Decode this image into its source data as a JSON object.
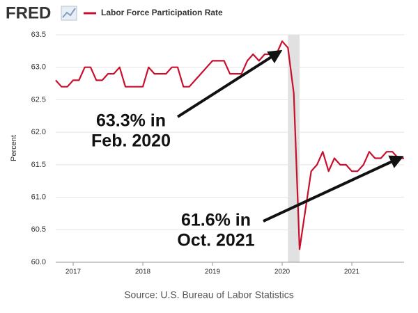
{
  "chart_data": {
    "type": "line",
    "brand": "FRED",
    "source": "Source: U.S. Bureau of Labor Statistics",
    "ylabel": "Percent",
    "x": [
      "2016-10",
      "2016-11",
      "2016-12",
      "2017-01",
      "2017-02",
      "2017-03",
      "2017-04",
      "2017-05",
      "2017-06",
      "2017-07",
      "2017-08",
      "2017-09",
      "2017-10",
      "2017-11",
      "2017-12",
      "2018-01",
      "2018-02",
      "2018-03",
      "2018-04",
      "2018-05",
      "2018-06",
      "2018-07",
      "2018-08",
      "2018-09",
      "2018-10",
      "2018-11",
      "2018-12",
      "2019-01",
      "2019-02",
      "2019-03",
      "2019-04",
      "2019-05",
      "2019-06",
      "2019-07",
      "2019-08",
      "2019-09",
      "2019-10",
      "2019-11",
      "2019-12",
      "2020-01",
      "2020-02",
      "2020-03",
      "2020-04",
      "2020-05",
      "2020-06",
      "2020-07",
      "2020-08",
      "2020-09",
      "2020-10",
      "2020-11",
      "2020-12",
      "2021-01",
      "2021-02",
      "2021-03",
      "2021-04",
      "2021-05",
      "2021-06",
      "2021-07",
      "2021-08",
      "2021-09",
      "2021-10"
    ],
    "series": [
      {
        "name": "Labor Force Participation Rate",
        "color": "#c8102e",
        "values": [
          62.8,
          62.7,
          62.7,
          62.8,
          62.8,
          63.0,
          63.0,
          62.8,
          62.8,
          62.9,
          62.9,
          63.0,
          62.7,
          62.7,
          62.7,
          62.7,
          63.0,
          62.9,
          62.9,
          62.9,
          63.0,
          63.0,
          62.7,
          62.7,
          62.8,
          62.9,
          63.0,
          63.1,
          63.1,
          63.1,
          62.9,
          62.9,
          62.9,
          63.1,
          63.2,
          63.1,
          63.2,
          63.2,
          63.2,
          63.4,
          63.3,
          62.6,
          60.2,
          60.8,
          61.4,
          61.5,
          61.7,
          61.4,
          61.6,
          61.5,
          61.5,
          61.4,
          61.4,
          61.5,
          61.7,
          61.6,
          61.6,
          61.7,
          61.7,
          61.6,
          61.6
        ]
      }
    ],
    "recession": {
      "start": "2020-02",
      "end": "2020-04",
      "color": "#e1e1e1"
    },
    "xlim": [
      "2016-10",
      "2021-10"
    ],
    "xticks": [
      {
        "value": "2017-01",
        "label": "2017"
      },
      {
        "value": "2018-01",
        "label": "2018"
      },
      {
        "value": "2019-01",
        "label": "2019"
      },
      {
        "value": "2020-01",
        "label": "2020"
      },
      {
        "value": "2021-01",
        "label": "2021"
      }
    ],
    "ylim": [
      60,
      63.5
    ],
    "yticks": [
      {
        "value": 60,
        "label": "60.0"
      },
      60.5,
      {
        "value": 61,
        "label": "61.0"
      },
      61.5,
      {
        "value": 62,
        "label": "62.0"
      },
      62.5,
      {
        "value": 63,
        "label": "63.0"
      },
      63.5
    ],
    "grid": true,
    "annotations": [
      {
        "lines": [
          "63.3% in",
          "Feb. 2020"
        ]
      },
      {
        "lines": [
          "61.6% in",
          "Oct. 2021"
        ]
      }
    ]
  }
}
